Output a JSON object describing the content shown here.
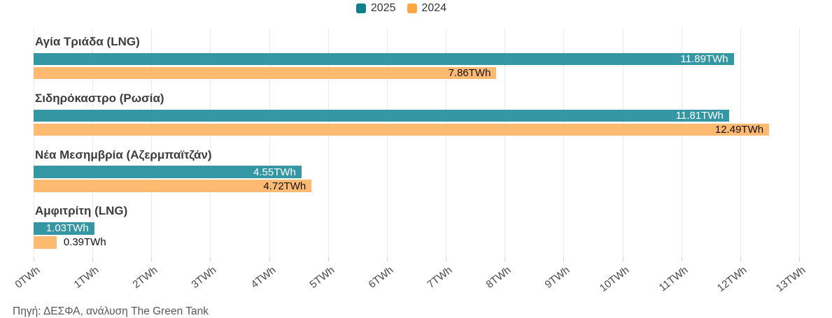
{
  "legend": {
    "items": [
      {
        "label": "2025",
        "color": "#0F7F8D"
      },
      {
        "label": "2024",
        "color": "#FBA845"
      }
    ]
  },
  "chart_data": {
    "type": "bar",
    "orientation": "horizontal",
    "title": "",
    "xlabel": "",
    "ylabel": "",
    "unit": "TWh",
    "xlim": [
      0,
      13
    ],
    "grid": true,
    "legend_position": "top-center",
    "categories": [
      "Αγία Τριάδα (LNG)",
      "Σιδηρόκαστρο (Ρωσία)",
      "Νέα Μεσημβρία (Αζερμπαϊτζάν)",
      "Αμφιτρίτη (LNG)"
    ],
    "series": [
      {
        "name": "2025",
        "bar_color": "#3597A3",
        "label_color": "#ffffff",
        "values": [
          11.89,
          11.81,
          4.55,
          1.03
        ],
        "labels": [
          "11.89TWh",
          "11.81TWh",
          "4.55TWh",
          "1.03TWh"
        ]
      },
      {
        "name": "2024",
        "bar_color": "#FDBA70",
        "label_color": "#111111",
        "values": [
          7.86,
          12.49,
          4.72,
          0.39
        ],
        "labels": [
          "7.86TWh",
          "12.49TWh",
          "4.72TWh",
          "0.39TWh"
        ]
      }
    ],
    "x_ticks": [
      "0TWh",
      "1TWh",
      "2TWh",
      "3TWh",
      "4TWh",
      "5TWh",
      "6TWh",
      "7TWh",
      "8TWh",
      "9TWh",
      "10TWh",
      "11TWh",
      "12TWh",
      "13TWh"
    ]
  },
  "footer": {
    "source": "Πηγή: ΔΕΣΦΑ, ανάλυση The Green Tank"
  }
}
